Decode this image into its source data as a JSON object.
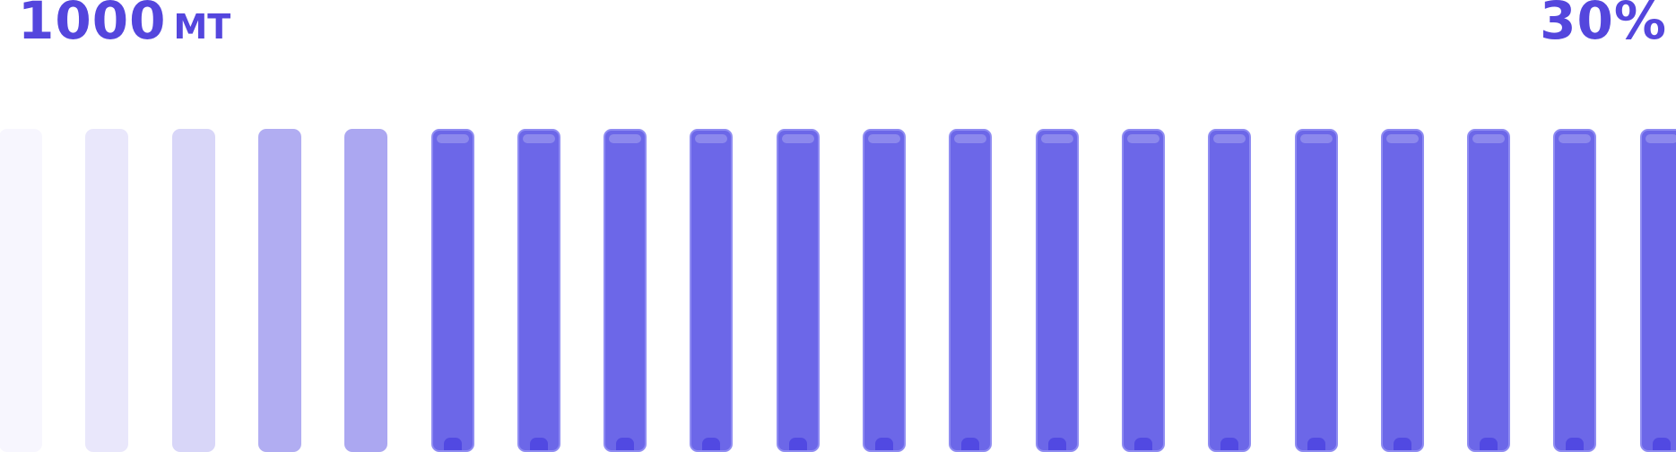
{
  "amount": {
    "value": "1000",
    "unit": "МТ"
  },
  "percent": "30%",
  "colors": {
    "accent": "#5446dd",
    "filled": "#6c67e8",
    "filled_border": "#8f8cf2",
    "level_1": "#f7f6fe",
    "level_2": "#e9e7fb",
    "level_3": "#d8d6f8",
    "level_4": "#b1adf2",
    "level_5": "#aba7f1"
  },
  "meter": {
    "total_segments": 20,
    "segments": [
      {
        "level": "level_1"
      },
      {
        "level": "level_2"
      },
      {
        "level": "level_3"
      },
      {
        "level": "level_4"
      },
      {
        "level": "level_5"
      },
      {
        "level": "filled"
      },
      {
        "level": "filled"
      },
      {
        "level": "filled"
      },
      {
        "level": "filled"
      },
      {
        "level": "filled"
      },
      {
        "level": "filled"
      },
      {
        "level": "filled"
      },
      {
        "level": "filled"
      },
      {
        "level": "filled"
      },
      {
        "level": "filled"
      },
      {
        "level": "filled"
      },
      {
        "level": "filled"
      },
      {
        "level": "filled"
      },
      {
        "level": "filled"
      },
      {
        "level": "filled"
      }
    ]
  }
}
